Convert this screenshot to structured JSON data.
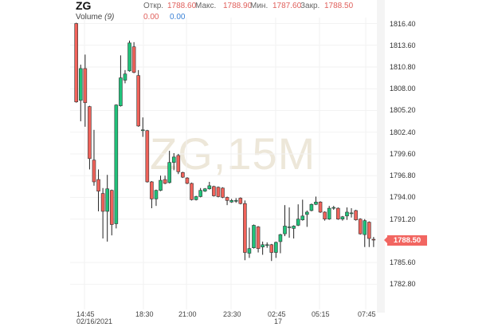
{
  "header": {
    "symbol": "ZG",
    "open_label": "Откр.",
    "open": "1788.60",
    "high_label": "Макс.",
    "high": "1788.90",
    "low_label": "Мин.",
    "low": "1787.60",
    "close_label": "Закр.",
    "close": "1788.50",
    "volume_label": "Volume",
    "volume_param": "(9)",
    "volume_val1": "0.00",
    "volume_val2": "0.00"
  },
  "watermark": "ZG,15M",
  "colors": {
    "up": "#1fc27a",
    "down": "#f0625a",
    "wick": "#222222",
    "last_price": "#f26661",
    "volume_neg": "#e0605c",
    "volume_pos": "#3b82d6"
  },
  "chart_data": {
    "type": "candlestick",
    "title": "ZG",
    "interval": "15M",
    "ylim": [
      1780.0,
      1816.6
    ],
    "grid": true,
    "y_ticks": [
      "1816.40",
      "1813.60",
      "1810.80",
      "1808.00",
      "1805.20",
      "1802.40",
      "1799.60",
      "1796.80",
      "1794.00",
      "1791.20",
      "1788.50",
      "1785.60",
      "1782.80"
    ],
    "x_ticks": [
      {
        "label": "14:45",
        "sub": "02/16/2021"
      },
      {
        "label": "18:30",
        "sub": ""
      },
      {
        "label": "21:00",
        "sub": ""
      },
      {
        "label": "23:30",
        "sub": ""
      },
      {
        "label": "02:45",
        "sub": "17"
      },
      {
        "label": "05:15",
        "sub": ""
      },
      {
        "label": "07:45",
        "sub": ""
      }
    ],
    "last_price": "1788.50",
    "ohlc": [
      [
        1816.4,
        1816.5,
        1806.2,
        1806.3
      ],
      [
        1806.5,
        1811.1,
        1803.8,
        1810.6
      ],
      [
        1810.6,
        1812.4,
        1803.1,
        1806.2
      ],
      [
        1805.7,
        1805.8,
        1797.6,
        1799.0
      ],
      [
        1798.8,
        1802.7,
        1795.5,
        1796.0
      ],
      [
        1796.3,
        1797.6,
        1792.2,
        1794.8
      ],
      [
        1794.5,
        1795.2,
        1788.7,
        1792.2
      ],
      [
        1792.2,
        1796.9,
        1788.3,
        1795.1
      ],
      [
        1794.9,
        1795.0,
        1789.1,
        1790.5
      ],
      [
        1790.6,
        1806.0,
        1790.0,
        1805.9
      ],
      [
        1805.8,
        1812.3,
        1805.7,
        1809.4
      ],
      [
        1809.1,
        1810.4,
        1808.7,
        1809.9
      ],
      [
        1810.3,
        1814.2,
        1810.2,
        1813.9
      ],
      [
        1813.4,
        1814.0,
        1810.0,
        1810.1
      ],
      [
        1809.7,
        1810.4,
        1803.1,
        1803.2
      ],
      [
        1802.7,
        1804.3,
        1801.8,
        1802.7
      ],
      [
        1802.6,
        1802.7,
        1795.9,
        1796.0
      ],
      [
        1796.0,
        1796.1,
        1792.6,
        1793.8
      ],
      [
        1793.8,
        1795.0,
        1792.9,
        1794.9
      ],
      [
        1794.9,
        1796.8,
        1794.8,
        1796.2
      ],
      [
        1796.3,
        1796.8,
        1795.7,
        1795.8
      ],
      [
        1795.9,
        1800.0,
        1795.8,
        1798.5
      ],
      [
        1798.5,
        1799.7,
        1797.5,
        1799.2
      ],
      [
        1799.4,
        1799.6,
        1797.0,
        1797.3
      ],
      [
        1797.2,
        1797.3,
        1796.5,
        1796.6
      ],
      [
        1796.5,
        1796.6,
        1795.7,
        1795.8
      ],
      [
        1795.8,
        1795.9,
        1793.6,
        1793.7
      ],
      [
        1793.7,
        1794.2,
        1793.6,
        1794.1
      ],
      [
        1794.1,
        1795.2,
        1794.0,
        1794.9
      ],
      [
        1794.8,
        1795.2,
        1794.7,
        1795.1
      ],
      [
        1795.1,
        1796.0,
        1795.0,
        1795.5
      ],
      [
        1795.4,
        1795.5,
        1794.1,
        1794.2
      ],
      [
        1795.3,
        1795.4,
        1794.0,
        1794.1
      ],
      [
        1795.2,
        1795.3,
        1793.9,
        1794.0
      ],
      [
        1794.0,
        1794.1,
        1793.0,
        1793.6
      ],
      [
        1793.4,
        1793.8,
        1793.3,
        1793.6
      ],
      [
        1793.6,
        1793.9,
        1793.3,
        1793.6
      ],
      [
        1793.9,
        1794.0,
        1793.1,
        1793.2
      ],
      [
        1793.2,
        1793.6,
        1785.9,
        1786.9
      ],
      [
        1786.8,
        1790.1,
        1786.2,
        1787.4
      ],
      [
        1787.5,
        1790.5,
        1787.4,
        1790.4
      ],
      [
        1790.2,
        1790.3,
        1786.9,
        1787.4
      ],
      [
        1787.6,
        1788.3,
        1786.6,
        1787.9
      ],
      [
        1787.9,
        1788.2,
        1787.5,
        1787.9
      ],
      [
        1787.9,
        1788.0,
        1785.8,
        1786.9
      ],
      [
        1786.9,
        1788.3,
        1786.2,
        1788.2
      ],
      [
        1788.3,
        1789.3,
        1786.8,
        1789.2
      ],
      [
        1789.3,
        1793.0,
        1789.0,
        1790.3
      ],
      [
        1790.2,
        1792.7,
        1788.8,
        1790.2
      ],
      [
        1790.0,
        1790.4,
        1788.7,
        1790.3
      ],
      [
        1790.4,
        1793.1,
        1790.3,
        1791.2
      ],
      [
        1791.1,
        1793.7,
        1791.0,
        1791.6
      ],
      [
        1791.8,
        1792.3,
        1790.2,
        1792.1
      ],
      [
        1792.3,
        1793.2,
        1792.2,
        1793.1
      ],
      [
        1793.1,
        1794.1,
        1793.0,
        1793.4
      ],
      [
        1793.4,
        1793.5,
        1792.0,
        1792.1
      ],
      [
        1792.1,
        1792.2,
        1791.0,
        1791.2
      ],
      [
        1791.2,
        1792.9,
        1791.1,
        1792.6
      ],
      [
        1792.7,
        1792.9,
        1792.4,
        1792.7
      ],
      [
        1792.6,
        1792.7,
        1791.1,
        1791.2
      ],
      [
        1791.2,
        1791.6,
        1791.0,
        1791.5
      ],
      [
        1791.6,
        1792.7,
        1791.1,
        1792.1
      ],
      [
        1792.0,
        1792.6,
        1791.4,
        1792.0
      ],
      [
        1792.3,
        1792.4,
        1791.0,
        1791.1
      ],
      [
        1791.2,
        1791.3,
        1789.2,
        1789.3
      ],
      [
        1789.2,
        1791.2,
        1787.6,
        1791.0
      ],
      [
        1790.8,
        1790.9,
        1787.6,
        1788.7
      ],
      [
        1788.6,
        1788.9,
        1787.6,
        1788.5
      ]
    ]
  }
}
